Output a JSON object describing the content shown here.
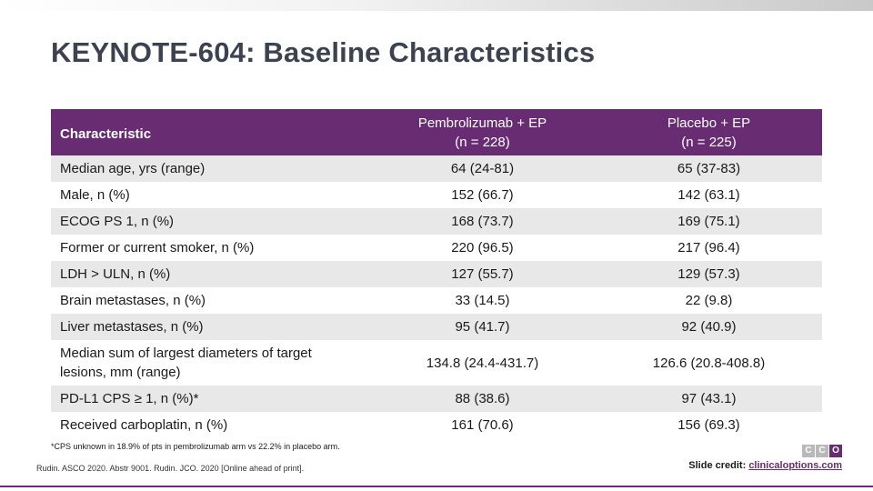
{
  "slide": {
    "title": "KEYNOTE-604: Baseline Characteristics"
  },
  "table": {
    "headers": {
      "characteristic": "Characteristic",
      "arm1_line1": "Pembrolizumab + EP",
      "arm1_line2": "(n = 228)",
      "arm2_line1": "Placebo + EP",
      "arm2_line2": "(n = 225)"
    },
    "rows": [
      {
        "label": "Median age, yrs (range)",
        "arm1": "64 (24-81)",
        "arm2": "65 (37-83)"
      },
      {
        "label": "Male, n (%)",
        "arm1": "152 (66.7)",
        "arm2": "142 (63.1)"
      },
      {
        "label": "ECOG PS 1, n (%)",
        "arm1": "168 (73.7)",
        "arm2": "169 (75.1)"
      },
      {
        "label": "Former or current smoker, n (%)",
        "arm1": "220 (96.5)",
        "arm2": "217 (96.4)"
      },
      {
        "label": "LDH > ULN, n (%)",
        "arm1": "127 (55.7)",
        "arm2": "129 (57.3)"
      },
      {
        "label": "Brain metastases, n (%)",
        "arm1": "33 (14.5)",
        "arm2": "22 (9.8)"
      },
      {
        "label": "Liver metastases, n (%)",
        "arm1": "95 (41.7)",
        "arm2": "92 (40.9)"
      },
      {
        "label": "Median sum of largest diameters of target lesions, mm (range)",
        "arm1": "134.8 (24.4-431.7)",
        "arm2": "126.6 (20.8-408.8)"
      },
      {
        "label": "PD-L1 CPS ≥ 1, n (%)*",
        "arm1": "88 (38.6)",
        "arm2": "97 (43.1)"
      },
      {
        "label": "Received carboplatin, n (%)",
        "arm1": "161 (70.6)",
        "arm2": "156 (69.3)"
      }
    ]
  },
  "footnote": "*CPS unknown in 18.9% of pts in pembrolizumab arm vs 22.2% in placebo arm.",
  "reference": "Rudin. ASCO 2020. Abstr 9001. Rudin. JCO. 2020 [Online ahead of print].",
  "credit": {
    "label": "Slide credit:",
    "link": "clinicaloptions.com"
  },
  "logo": {
    "letters": [
      "C",
      "C",
      "O"
    ]
  },
  "colors": {
    "header_bg": "#682c72",
    "row_alt": "#e8e8e8",
    "title": "#3d4250"
  }
}
